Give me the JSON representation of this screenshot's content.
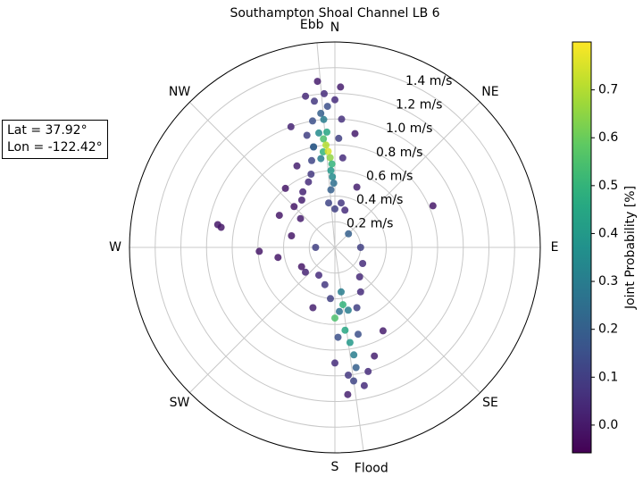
{
  "chart_data": {
    "type": "polar_scatter",
    "title": "Southampton Shoal Channel LB 6",
    "annotation_lines": [
      "Lat = 37.92°",
      "Lon = -122.42°"
    ],
    "colorbar_label": "Joint Probability [%]",
    "colormap": "viridis",
    "clim": [
      -0.058,
      0.8
    ],
    "cticks": [
      {
        "value": 0,
        "label": "0.0"
      },
      0.1,
      0.2,
      0.3,
      0.4,
      0.5,
      0.6,
      0.7
    ],
    "rlim": [
      0,
      1.6
    ],
    "rticks": [
      {
        "value": 0.2,
        "label": "0.2 m/s"
      },
      {
        "value": 0.4,
        "label": "0.4 m/s"
      },
      {
        "value": 0.6,
        "label": "0.6 m/s"
      },
      {
        "value": 0.8,
        "label": "0.8 m/s"
      },
      {
        "value": 1.0,
        "label": "1.0 m/s"
      },
      {
        "value": 1.2,
        "label": "1.2 m/s"
      },
      {
        "value": 1.4,
        "label": "1.4 m/s"
      }
    ],
    "angle_ticks": [
      {
        "value": 0,
        "label": "N"
      },
      {
        "value": 45,
        "label": "NE"
      },
      {
        "value": 90,
        "label": "E"
      },
      {
        "value": 135,
        "label": "SE"
      },
      {
        "value": 180,
        "label": "S"
      },
      {
        "value": 225,
        "label": "SW"
      },
      {
        "value": 270,
        "label": "W"
      },
      {
        "value": 315,
        "label": "NW"
      }
    ],
    "grid": true,
    "direction_lines": [
      {
        "label": "Ebb",
        "theta": -5
      },
      {
        "label": "Flood",
        "theta": 172
      }
    ],
    "theta": [
      -12,
      -40,
      -45,
      -50,
      -60,
      -75,
      -100,
      -120,
      -80,
      -79,
      67,
      -93,
      -35,
      -30,
      -25,
      -22,
      -20,
      -18,
      -15,
      -14,
      -11,
      -10,
      -8,
      -6,
      -4,
      0,
      2,
      3,
      5,
      10,
      15,
      20,
      -8,
      0,
      8,
      -12,
      -9,
      -8,
      -7,
      -6,
      -6,
      -5,
      -5,
      -4,
      -4,
      -4,
      -3,
      -3,
      -3,
      -2,
      -2,
      -1,
      2,
      90,
      -90,
      45,
      120,
      140,
      150,
      150,
      160,
      160,
      165,
      165,
      168,
      168,
      170,
      170,
      171,
      172,
      172,
      172,
      173,
      174,
      175,
      176,
      178,
      180,
      185,
      195,
      200,
      210,
      230,
      180
    ],
    "r": [
      0.8,
      0.6,
      0.45,
      0.35,
      0.5,
      0.35,
      0.45,
      0.3,
      0.9,
      0.93,
      0.83,
      0.59,
      0.45,
      0.5,
      0.7,
      0.55,
      1.0,
      0.6,
      0.7,
      0.9,
      1.2,
      1.0,
      1.15,
      1.3,
      1.2,
      1.15,
      1.25,
      1.0,
      0.7,
      0.9,
      0.3,
      0.5,
      0.35,
      0.3,
      0.35,
      0.8,
      0.7,
      0.9,
      0.75,
      0.85,
      1.05,
      0.8,
      1.0,
      0.75,
      0.9,
      0.45,
      0.7,
      0.6,
      1.1,
      0.65,
      0.55,
      0.5,
      0.85,
      0.2,
      0.15,
      0.15,
      0.25,
      0.3,
      0.4,
      0.75,
      0.5,
      0.9,
      0.7,
      1.0,
      0.5,
      1.1,
      0.85,
      0.95,
      0.75,
      0.45,
      0.35,
      1.05,
      0.65,
      1.0,
      1.15,
      0.5,
      0.7,
      0.9,
      0.4,
      0.3,
      0.5,
      0.25,
      0.3,
      0.55
    ],
    "c": [
      0.2,
      0.0,
      0.0,
      0.01,
      0.0,
      0.0,
      0.0,
      0.0,
      0.0,
      0.0,
      0.0,
      0.0,
      0.02,
      0.03,
      0.02,
      0.05,
      0.03,
      0.08,
      0.12,
      0.1,
      0.04,
      0.15,
      0.08,
      0.01,
      0.05,
      0.05,
      0.01,
      0.06,
      0.05,
      0.01,
      0.05,
      0.02,
      0.12,
      0.1,
      0.08,
      0.2,
      0.3,
      0.35,
      0.5,
      0.55,
      0.2,
      0.7,
      0.3,
      0.75,
      0.45,
      0.2,
      0.65,
      0.4,
      0.15,
      0.5,
      0.35,
      0.25,
      0.1,
      0.1,
      0.1,
      0.2,
      0.05,
      0.04,
      0.05,
      0.01,
      0.1,
      0.02,
      0.15,
      0.05,
      0.3,
      0.05,
      0.3,
      0.2,
      0.4,
      0.5,
      0.3,
      0.12,
      0.45,
      0.08,
      0.02,
      0.25,
      0.15,
      0.05,
      0.1,
      0.08,
      0.02,
      0.05,
      0.03,
      0.55
    ]
  }
}
